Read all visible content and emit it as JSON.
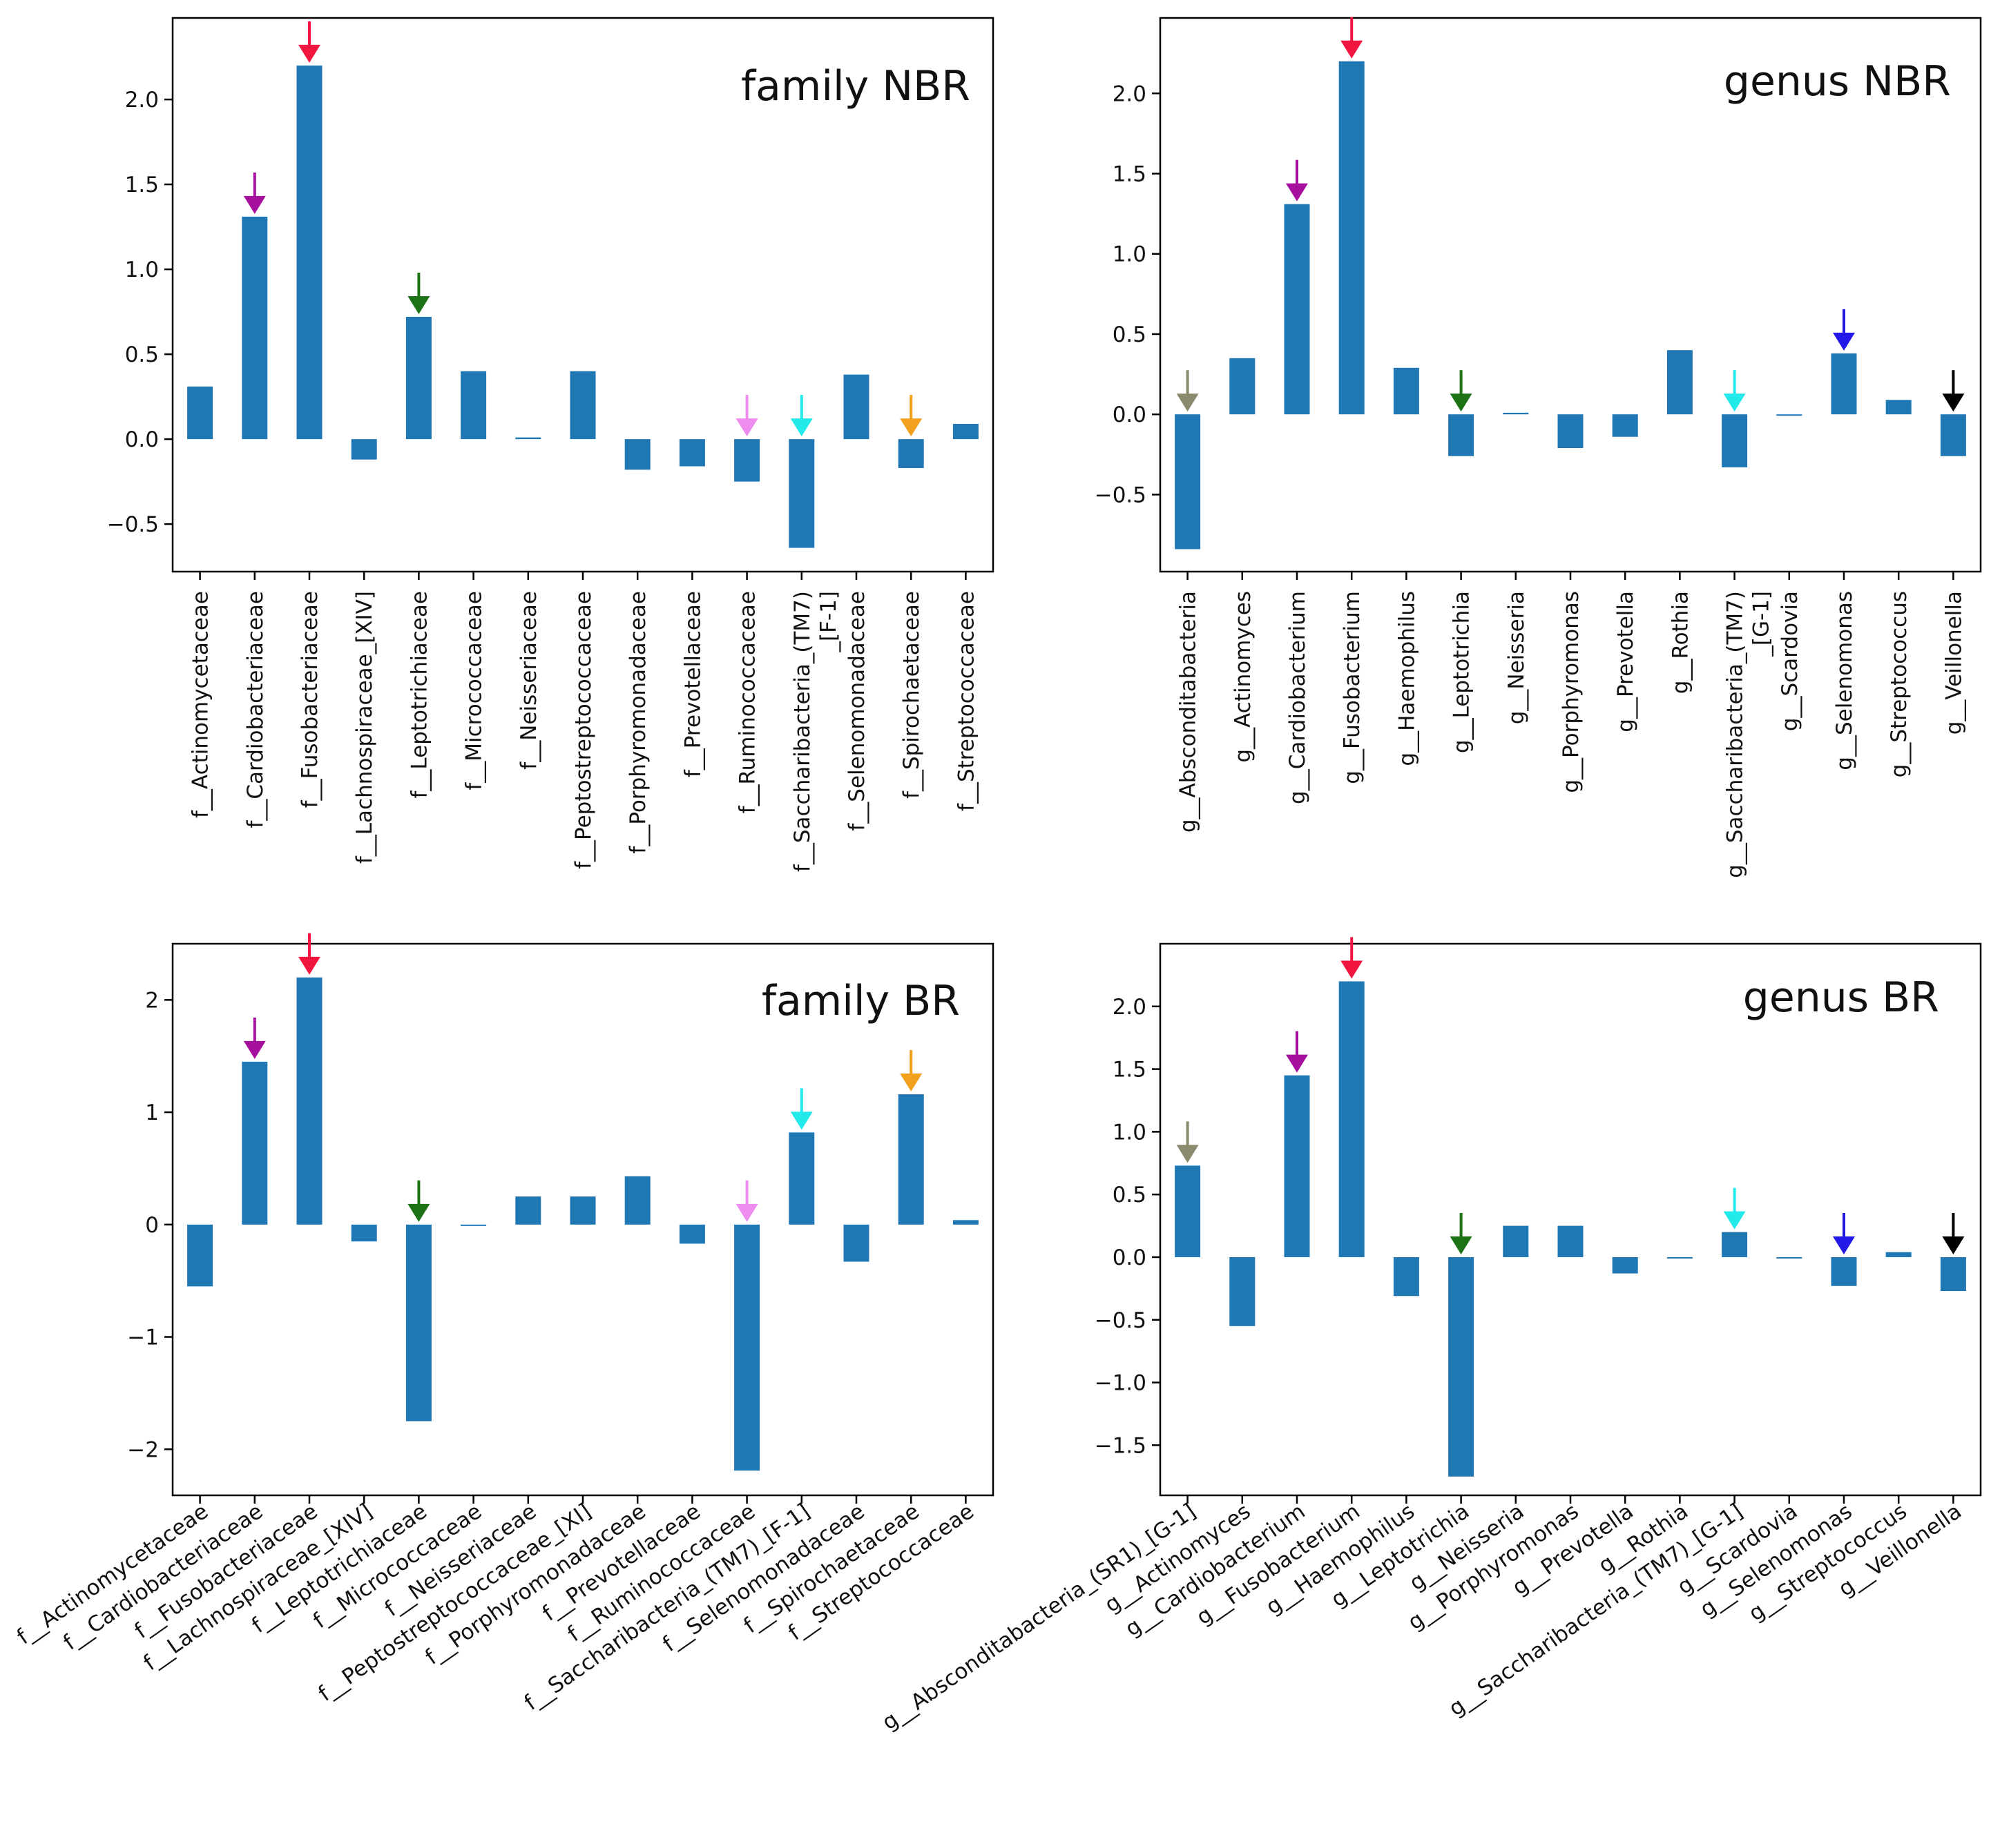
{
  "colors": {
    "bar": "#1f77b4",
    "red": "#f0163f",
    "purple": "#a6109e",
    "green": "#1d7216",
    "pink": "#ef8cf0",
    "cyan": "#22eaea",
    "orange": "#f2a11e",
    "grey": "#8c8a6e",
    "blue": "#2418e6",
    "black": "#000000"
  },
  "chart_data": [
    {
      "id": "family-nbr",
      "type": "bar",
      "title": "family NBR",
      "label_style": "vertical",
      "categories": [
        "f__Actinomycetaceae",
        "f__Cardiobacteriaceae",
        "f__Fusobacteriaceae",
        "f__Lachnospiraceae_[XIV]",
        "f__Leptotrichiaceae",
        "f__Micrococcaceae",
        "f__Neisseriaceae",
        "f__Peptostreptococcaceae",
        "f__Porphyromonadaceae",
        "f__Prevotellaceae",
        "f__Ruminococcaceae",
        "f__Saccharibacteria_(TM7)\n_[F-1]",
        "f__Selenomonadaceae",
        "f__Spirochaetaceae",
        "f__Streptococcaceae"
      ],
      "values": [
        0.31,
        1.31,
        2.2,
        -0.12,
        0.72,
        0.4,
        0.01,
        0.4,
        -0.18,
        -0.16,
        -0.25,
        -0.64,
        0.38,
        -0.17,
        0.09
      ],
      "arrows": [
        "",
        "purple",
        "red",
        "",
        "green",
        "",
        "",
        "",
        "",
        "",
        "pink",
        "cyan",
        "",
        "orange",
        ""
      ],
      "ylim": [
        -0.78,
        2.48
      ],
      "yticks": [
        -0.5,
        0.0,
        0.5,
        1.0,
        1.5,
        2.0
      ],
      "ytick_labels": [
        "−0.5",
        "0.0",
        "0.5",
        "1.0",
        "1.5",
        "2.0"
      ],
      "xlabel": "",
      "ylabel": "",
      "legend": "none",
      "grid": false
    },
    {
      "id": "genus-nbr",
      "type": "bar",
      "title": "genus NBR",
      "label_style": "vertical",
      "categories": [
        "g__Absconditabacteria",
        "g__Actinomyces",
        "g__Cardiobacterium",
        "g__Fusobacterium",
        "g__Haemophilus",
        "g__Leptotrichia",
        "g__Neisseria",
        "g__Porphyromonas",
        "g__Prevotella",
        "g__Rothia",
        "g__Saccharibacteria_(TM7)\n_[G-1]",
        "g__Scardovia",
        "g__Selenomonas",
        "g__Streptococcus",
        "g__Veillonella"
      ],
      "values": [
        -0.84,
        0.35,
        1.31,
        2.2,
        0.29,
        -0.26,
        0.01,
        -0.21,
        -0.14,
        0.4,
        -0.33,
        0.0,
        0.38,
        0.09,
        -0.26
      ],
      "arrows": [
        "grey",
        "",
        "purple",
        "red",
        "",
        "green",
        "",
        "",
        "",
        "",
        "cyan",
        "",
        "blue",
        "",
        "black"
      ],
      "ylim": [
        -0.98,
        2.47
      ],
      "yticks": [
        -0.5,
        0.0,
        0.5,
        1.0,
        1.5,
        2.0
      ],
      "ytick_labels": [
        "−0.5",
        "0.0",
        "0.5",
        "1.0",
        "1.5",
        "2.0"
      ],
      "xlabel": "",
      "ylabel": "",
      "legend": "none",
      "grid": false
    },
    {
      "id": "family-br",
      "type": "bar",
      "title": "family BR",
      "label_style": "rotated",
      "categories": [
        "f__Actinomycetaceae",
        "f__Cardiobacteriaceae",
        "f__Fusobacteriaceae",
        "f__Lachnospiraceae_[XIV]",
        "f__Leptotrichiaceae",
        "f__Micrococcaceae",
        "f__Neisseriaceae",
        "f__Peptostreptococcaceae_[XI]",
        "f__Porphyromonadaceae",
        "f__Prevotellaceae",
        "f__Ruminococcaceae",
        "f__Saccharibacteria_(TM7)_[F-1]",
        "f__Selenomonadaceae",
        "f__Spirochaetaceae",
        "f__Streptococcaceae"
      ],
      "values": [
        -0.55,
        1.45,
        2.2,
        -0.15,
        -1.75,
        -0.01,
        0.25,
        0.25,
        0.43,
        -0.17,
        -2.19,
        0.82,
        -0.33,
        1.16,
        0.04
      ],
      "arrows": [
        "",
        "purple",
        "red",
        "",
        "green",
        "",
        "",
        "",
        "",
        "",
        "pink",
        "cyan",
        "",
        "orange",
        ""
      ],
      "ylim": [
        -2.41,
        2.5
      ],
      "yticks": [
        -2,
        -1,
        0,
        1,
        2
      ],
      "ytick_labels": [
        "−2",
        "−1",
        "0",
        "1",
        "2"
      ],
      "xlabel": "",
      "ylabel": "",
      "legend": "none",
      "grid": false
    },
    {
      "id": "genus-br",
      "type": "bar",
      "title": "genus BR",
      "label_style": "rotated",
      "categories": [
        "g__Absconditabacteria_(SR1)_[G-1]",
        "g__Actinomyces",
        "g__Cardiobacterium",
        "g__Fusobacterium",
        "g__Haemophilus",
        "g__Leptotrichia",
        "g__Neisseria",
        "g__Porphyromonas",
        "g__Prevotella",
        "g__Rothia",
        "g__Saccharibacteria_(TM7)_[G-1]",
        "g__Scardovia",
        "g__Selenomonas",
        "g__Streptococcus",
        "g__Veillonella"
      ],
      "values": [
        0.73,
        -0.55,
        1.45,
        2.2,
        -0.31,
        -1.75,
        0.25,
        0.25,
        -0.13,
        -0.01,
        0.2,
        0.0,
        -0.23,
        0.04,
        -0.27
      ],
      "arrows": [
        "grey",
        "",
        "purple",
        "red",
        "",
        "green",
        "",
        "",
        "",
        "",
        "cyan",
        "",
        "blue",
        "",
        "black"
      ],
      "ylim": [
        -1.9,
        2.5
      ],
      "yticks": [
        -1.5,
        -1.0,
        -0.5,
        0.0,
        0.5,
        1.0,
        1.5,
        2.0
      ],
      "ytick_labels": [
        "−1.5",
        "−1.0",
        "−0.5",
        "0.0",
        "0.5",
        "1.0",
        "1.5",
        "2.0"
      ],
      "xlabel": "",
      "ylabel": "",
      "legend": "none",
      "grid": false
    }
  ]
}
